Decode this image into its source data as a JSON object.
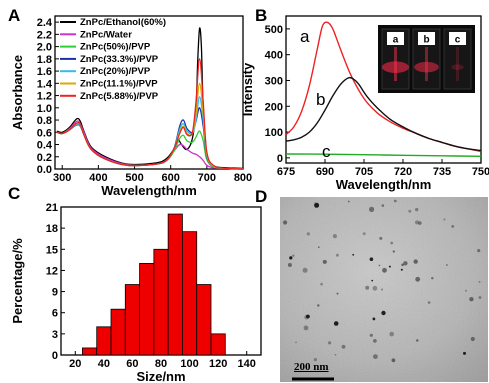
{
  "panels": {
    "a": "A",
    "b": "B",
    "c": "C",
    "d": "D"
  },
  "chart_data": [
    {
      "type": "line",
      "panel": "A",
      "xlabel": "Wavelength/nm",
      "ylabel": "Absorbance",
      "xlim": [
        280,
        800
      ],
      "ylim": [
        0,
        2.5
      ],
      "xticks": [
        300,
        400,
        500,
        600,
        700,
        800
      ],
      "yticks": [
        0.0,
        0.2,
        0.4,
        0.6,
        0.8,
        1.0,
        1.2,
        1.4,
        1.6,
        1.8,
        2.0,
        2.2,
        2.4
      ],
      "legend_position": "top-right",
      "series": [
        {
          "name": "ZnPc/Ethanol(60%)",
          "color": "#000000",
          "x": [
            285,
            300,
            320,
            340,
            350,
            360,
            380,
            420,
            480,
            560,
            590,
            610,
            620,
            630,
            645,
            660,
            670,
            675,
            680,
            685,
            690,
            700,
            720,
            760,
            800
          ],
          "y": [
            0.62,
            0.6,
            0.68,
            0.82,
            0.78,
            0.62,
            0.36,
            0.2,
            0.08,
            0.1,
            0.18,
            0.34,
            0.48,
            0.4,
            0.32,
            0.5,
            1.0,
            1.8,
            2.3,
            2.0,
            1.0,
            0.25,
            0.05,
            0.02,
            0.01
          ]
        },
        {
          "name": "ZnPc/Water",
          "color": "#cc33cc",
          "x": [
            285,
            300,
            320,
            340,
            350,
            360,
            380,
            420,
            480,
            560,
            590,
            610,
            625,
            635,
            645,
            660,
            670,
            680,
            690,
            700,
            720,
            760,
            800
          ],
          "y": [
            0.6,
            0.58,
            0.66,
            0.78,
            0.74,
            0.6,
            0.34,
            0.18,
            0.07,
            0.08,
            0.15,
            0.3,
            0.4,
            0.38,
            0.32,
            0.26,
            0.24,
            0.2,
            0.14,
            0.06,
            0.02,
            0.01,
            0.0
          ]
        },
        {
          "name": "ZnPc(50%)/PVP",
          "color": "#33cc33",
          "x": [
            285,
            300,
            320,
            340,
            350,
            360,
            380,
            420,
            480,
            560,
            590,
            610,
            625,
            635,
            645,
            660,
            670,
            680,
            690,
            700,
            720,
            760,
            800
          ],
          "y": [
            0.6,
            0.58,
            0.65,
            0.72,
            0.7,
            0.56,
            0.32,
            0.16,
            0.06,
            0.08,
            0.14,
            0.3,
            0.5,
            0.55,
            0.46,
            0.44,
            0.52,
            0.62,
            0.46,
            0.15,
            0.03,
            0.01,
            0.0
          ]
        },
        {
          "name": "ZnPc(33.3%)/PVP",
          "color": "#1a33aa",
          "x": [
            285,
            300,
            320,
            340,
            350,
            360,
            380,
            420,
            480,
            560,
            590,
            610,
            625,
            635,
            645,
            660,
            670,
            680,
            690,
            700,
            720,
            760,
            800
          ],
          "y": [
            0.6,
            0.58,
            0.64,
            0.72,
            0.7,
            0.56,
            0.32,
            0.16,
            0.06,
            0.08,
            0.15,
            0.35,
            0.7,
            0.8,
            0.66,
            0.6,
            0.78,
            1.0,
            0.7,
            0.2,
            0.04,
            0.01,
            0.0
          ]
        },
        {
          "name": "ZnPc(20%)/PVP",
          "color": "#33bbee",
          "x": [
            285,
            300,
            320,
            340,
            350,
            360,
            380,
            420,
            480,
            560,
            590,
            610,
            625,
            635,
            645,
            660,
            670,
            680,
            690,
            700,
            720,
            760,
            800
          ],
          "y": [
            0.6,
            0.58,
            0.64,
            0.73,
            0.71,
            0.56,
            0.32,
            0.16,
            0.06,
            0.08,
            0.15,
            0.34,
            0.65,
            0.74,
            0.62,
            0.58,
            0.8,
            1.18,
            0.8,
            0.22,
            0.04,
            0.01,
            0.0
          ]
        },
        {
          "name": "ZnPc(11.1%)/PVP",
          "color": "#ddaa00",
          "x": [
            285,
            300,
            320,
            340,
            350,
            360,
            380,
            420,
            480,
            560,
            590,
            610,
            625,
            635,
            645,
            660,
            670,
            680,
            690,
            700,
            720,
            760,
            800
          ],
          "y": [
            0.6,
            0.58,
            0.64,
            0.74,
            0.72,
            0.56,
            0.32,
            0.16,
            0.06,
            0.08,
            0.15,
            0.34,
            0.6,
            0.7,
            0.58,
            0.58,
            0.9,
            1.4,
            0.9,
            0.24,
            0.04,
            0.01,
            0.0
          ]
        },
        {
          "name": "ZnPc(5.88%)/PVP",
          "color": "#ee2222",
          "x": [
            285,
            300,
            320,
            340,
            350,
            360,
            380,
            420,
            480,
            560,
            590,
            610,
            625,
            635,
            645,
            660,
            670,
            680,
            690,
            700,
            720,
            760,
            800
          ],
          "y": [
            0.6,
            0.58,
            0.64,
            0.75,
            0.73,
            0.56,
            0.32,
            0.16,
            0.06,
            0.08,
            0.15,
            0.34,
            0.58,
            0.68,
            0.56,
            0.6,
            1.1,
            1.8,
            1.1,
            0.28,
            0.05,
            0.01,
            0.0
          ]
        }
      ]
    },
    {
      "type": "line",
      "panel": "B",
      "xlabel": "Wavelength/nm",
      "ylabel": "Intensity",
      "xlim": [
        675,
        750
      ],
      "ylim": [
        -20,
        550
      ],
      "xticks": [
        675,
        690,
        705,
        720,
        735,
        750
      ],
      "yticks": [
        0,
        100,
        200,
        300,
        400,
        500
      ],
      "curve_labels": [
        "a",
        "b",
        "c"
      ],
      "inset_labels": [
        "a",
        "b",
        "c"
      ],
      "series": [
        {
          "name": "a",
          "color": "#ee2222",
          "x": [
            675,
            678,
            681,
            684,
            687,
            689,
            691,
            693,
            696,
            700,
            705,
            710,
            715,
            720,
            725,
            730,
            735,
            740,
            745,
            750
          ],
          "y": [
            90,
            120,
            180,
            280,
            420,
            510,
            525,
            500,
            420,
            320,
            230,
            175,
            140,
            115,
            95,
            75,
            60,
            45,
            35,
            25
          ]
        },
        {
          "name": "b",
          "color": "#111111",
          "x": [
            675,
            678,
            681,
            684,
            687,
            690,
            693,
            696,
            699,
            701,
            703,
            706,
            710,
            715,
            720,
            725,
            730,
            735,
            740,
            745,
            750
          ],
          "y": [
            65,
            70,
            80,
            100,
            135,
            185,
            240,
            285,
            310,
            305,
            285,
            240,
            195,
            150,
            120,
            95,
            75,
            60,
            45,
            35,
            28
          ]
        },
        {
          "name": "c",
          "color": "#22aa22",
          "x": [
            675,
            690,
            705,
            720,
            735,
            750
          ],
          "y": [
            15,
            14,
            12,
            10,
            8,
            6
          ]
        }
      ]
    },
    {
      "type": "bar",
      "panel": "C",
      "xlabel": "Size/nm",
      "ylabel": "Percentage/%",
      "xlim": [
        10,
        150
      ],
      "ylim": [
        0,
        21
      ],
      "xticks": [
        20,
        40,
        60,
        80,
        100,
        120,
        140
      ],
      "yticks": [
        0,
        3,
        6,
        9,
        12,
        15,
        18,
        21
      ],
      "bar_width": 10,
      "x": [
        30,
        40,
        50,
        60,
        70,
        80,
        90,
        100,
        110,
        120
      ],
      "values": [
        1,
        4,
        6.5,
        10,
        13,
        15,
        20,
        17.5,
        10,
        3
      ],
      "color": "#ee0000"
    }
  ],
  "sem": {
    "scale_label": "200 nm"
  }
}
